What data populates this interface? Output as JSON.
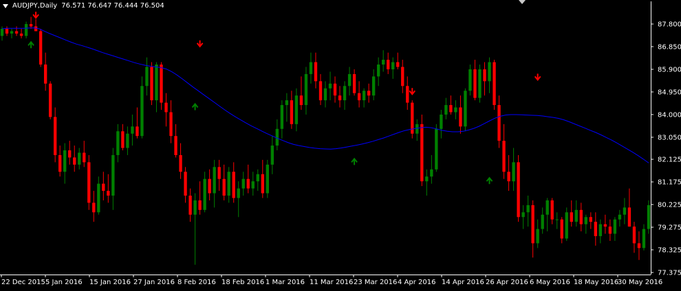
{
  "header": {
    "symbol": "AUDJPY,Daily",
    "ohlc": "76.571 76.647 76.444 76.504"
  },
  "chart_data": {
    "type": "candlestick",
    "symbol": "AUDJPY",
    "timeframe": "Daily",
    "ylim": [
      77.375,
      88.2
    ],
    "y_ticks": [
      "87.800",
      "86.850",
      "85.900",
      "84.950",
      "84.000",
      "83.050",
      "82.125",
      "81.175",
      "80.225",
      "79.275",
      "78.325",
      "77.375"
    ],
    "x_ticks": [
      "22 Dec 2015",
      "5 Jan 2016",
      "15 Jan 2016",
      "27 Jan 2016",
      "8 Feb 2016",
      "18 Feb 2016",
      "1 Mar 2016",
      "11 Mar 2016",
      "23 Mar 2016",
      "4 Apr 2016",
      "14 Apr 2016",
      "26 Apr 2016",
      "6 May 2016",
      "18 May 2016",
      "30 May 2016"
    ],
    "colors": {
      "bull": "#008000",
      "bear": "#ff0000",
      "ma": "#0000ff",
      "background": "#000000",
      "axis": "#ffffff"
    },
    "candles": [
      [
        87.3,
        87.7,
        87.1,
        87.6
      ],
      [
        87.6,
        87.7,
        87.3,
        87.4
      ],
      [
        87.4,
        87.6,
        87.2,
        87.5
      ],
      [
        87.5,
        87.7,
        87.3,
        87.4
      ],
      [
        87.4,
        87.6,
        87.2,
        87.3
      ],
      [
        87.3,
        87.9,
        87.2,
        87.8
      ],
      [
        87.8,
        88.1,
        87.6,
        87.7
      ],
      [
        87.7,
        88.0,
        87.5,
        87.5
      ],
      [
        87.5,
        87.6,
        86.0,
        86.1
      ],
      [
        86.1,
        86.6,
        85.0,
        85.3
      ],
      [
        85.3,
        85.4,
        83.8,
        83.9
      ],
      [
        83.9,
        84.3,
        82.0,
        82.3
      ],
      [
        82.3,
        82.7,
        81.4,
        81.6
      ],
      [
        81.6,
        82.8,
        81.1,
        82.5
      ],
      [
        82.5,
        82.9,
        81.9,
        82.2
      ],
      [
        82.2,
        82.7,
        81.6,
        81.9
      ],
      [
        81.9,
        82.6,
        81.7,
        82.4
      ],
      [
        82.4,
        82.9,
        81.8,
        82.0
      ],
      [
        82.0,
        82.3,
        80.0,
        80.3
      ],
      [
        80.3,
        80.8,
        79.5,
        79.9
      ],
      [
        79.9,
        81.4,
        79.8,
        81.1
      ],
      [
        81.1,
        81.6,
        80.4,
        80.8
      ],
      [
        80.8,
        81.5,
        80.3,
        80.6
      ],
      [
        80.6,
        82.6,
        80.0,
        82.3
      ],
      [
        82.3,
        83.6,
        82.0,
        83.3
      ],
      [
        83.3,
        83.6,
        82.5,
        82.6
      ],
      [
        82.6,
        83.5,
        82.3,
        83.2
      ],
      [
        83.2,
        84.0,
        82.7,
        83.5
      ],
      [
        83.5,
        84.3,
        83.0,
        83.1
      ],
      [
        83.1,
        85.6,
        83.0,
        85.2
      ],
      [
        85.2,
        86.4,
        84.8,
        86.0
      ],
      [
        86.0,
        86.2,
        84.4,
        84.6
      ],
      [
        84.6,
        86.2,
        84.1,
        86.1
      ],
      [
        86.1,
        86.2,
        84.2,
        84.5
      ],
      [
        84.5,
        84.9,
        83.5,
        84.1
      ],
      [
        84.1,
        84.6,
        82.8,
        83.1
      ],
      [
        83.1,
        83.6,
        82.2,
        82.3
      ],
      [
        82.3,
        82.8,
        81.3,
        81.6
      ],
      [
        81.6,
        81.8,
        80.3,
        80.6
      ],
      [
        80.6,
        80.9,
        79.5,
        79.8
      ],
      [
        79.8,
        80.7,
        77.7,
        80.4
      ],
      [
        80.4,
        81.2,
        79.8,
        80.0
      ],
      [
        80.0,
        81.6,
        79.9,
        81.3
      ],
      [
        81.3,
        81.7,
        80.4,
        80.7
      ],
      [
        80.7,
        82.1,
        80.1,
        81.8
      ],
      [
        81.8,
        82.1,
        80.8,
        81.3
      ],
      [
        81.3,
        81.9,
        80.4,
        80.6
      ],
      [
        80.6,
        81.8,
        80.3,
        81.6
      ],
      [
        81.6,
        82.0,
        80.3,
        80.5
      ],
      [
        80.5,
        81.2,
        79.7,
        80.9
      ],
      [
        80.9,
        81.6,
        80.6,
        81.3
      ],
      [
        81.3,
        81.9,
        80.7,
        80.9
      ],
      [
        80.9,
        81.6,
        80.6,
        81.2
      ],
      [
        81.2,
        81.7,
        80.8,
        81.5
      ],
      [
        81.5,
        82.1,
        80.5,
        80.7
      ],
      [
        80.7,
        82.1,
        80.5,
        81.9
      ],
      [
        81.9,
        83.1,
        81.5,
        82.7
      ],
      [
        82.7,
        83.8,
        82.5,
        83.4
      ],
      [
        83.4,
        84.6,
        83.0,
        84.4
      ],
      [
        84.4,
        84.9,
        83.7,
        84.6
      ],
      [
        84.6,
        85.0,
        83.4,
        83.6
      ],
      [
        83.6,
        85.1,
        83.3,
        84.8
      ],
      [
        84.8,
        85.6,
        84.2,
        84.4
      ],
      [
        84.4,
        86.0,
        84.0,
        85.7
      ],
      [
        85.7,
        86.6,
        85.3,
        86.2
      ],
      [
        86.2,
        86.6,
        85.1,
        85.4
      ],
      [
        85.4,
        85.7,
        84.4,
        84.6
      ],
      [
        84.6,
        85.4,
        84.3,
        85.1
      ],
      [
        85.1,
        85.8,
        84.6,
        85.3
      ],
      [
        85.3,
        85.6,
        84.5,
        84.8
      ],
      [
        84.8,
        85.2,
        84.3,
        84.6
      ],
      [
        84.6,
        85.4,
        84.2,
        85.2
      ],
      [
        85.2,
        86.0,
        84.8,
        85.7
      ],
      [
        85.7,
        85.9,
        84.8,
        84.9
      ],
      [
        84.9,
        85.4,
        84.3,
        84.6
      ],
      [
        84.6,
        85.1,
        84.3,
        85.0
      ],
      [
        85.0,
        85.3,
        84.5,
        84.8
      ],
      [
        84.8,
        85.9,
        84.6,
        85.6
      ],
      [
        85.6,
        86.4,
        85.2,
        86.1
      ],
      [
        86.1,
        86.7,
        85.8,
        86.3
      ],
      [
        86.3,
        86.6,
        85.7,
        85.9
      ],
      [
        85.9,
        86.4,
        85.5,
        86.2
      ],
      [
        86.2,
        86.6,
        85.9,
        86.0
      ],
      [
        86.0,
        86.3,
        84.9,
        85.2
      ],
      [
        85.2,
        85.6,
        84.2,
        84.5
      ],
      [
        84.5,
        84.6,
        83.0,
        83.2
      ],
      [
        83.2,
        83.8,
        82.9,
        83.6
      ],
      [
        83.6,
        84.0,
        81.0,
        81.2
      ],
      [
        81.2,
        81.7,
        80.6,
        81.4
      ],
      [
        81.4,
        82.3,
        81.1,
        81.7
      ],
      [
        81.7,
        83.6,
        81.6,
        83.4
      ],
      [
        83.4,
        84.2,
        83.0,
        84.0
      ],
      [
        84.0,
        84.7,
        83.8,
        84.4
      ],
      [
        84.4,
        84.8,
        84.0,
        84.1
      ],
      [
        84.1,
        84.6,
        83.8,
        84.3
      ],
      [
        84.3,
        84.8,
        83.2,
        83.5
      ],
      [
        83.5,
        85.1,
        83.3,
        85.0
      ],
      [
        85.0,
        86.1,
        84.8,
        85.9
      ],
      [
        85.9,
        86.3,
        84.6,
        84.7
      ],
      [
        84.7,
        86.1,
        84.5,
        85.9
      ],
      [
        85.9,
        86.2,
        84.8,
        85.4
      ],
      [
        85.4,
        86.4,
        84.9,
        86.2
      ],
      [
        86.2,
        86.3,
        84.2,
        84.4
      ],
      [
        84.4,
        84.8,
        82.6,
        82.9
      ],
      [
        82.9,
        83.6,
        81.3,
        81.6
      ],
      [
        81.6,
        82.3,
        80.8,
        81.2
      ],
      [
        81.2,
        82.6,
        80.8,
        82.0
      ],
      [
        82.0,
        82.3,
        79.5,
        79.7
      ],
      [
        79.7,
        80.2,
        79.2,
        79.9
      ],
      [
        79.9,
        80.6,
        79.3,
        80.2
      ],
      [
        80.2,
        80.4,
        78.0,
        78.6
      ],
      [
        78.6,
        79.6,
        78.4,
        79.2
      ],
      [
        79.2,
        80.1,
        79.0,
        79.8
      ],
      [
        79.8,
        80.5,
        79.1,
        80.4
      ],
      [
        80.4,
        80.5,
        79.4,
        79.6
      ],
      [
        79.6,
        79.9,
        79.2,
        79.6
      ],
      [
        79.6,
        79.7,
        78.6,
        78.8
      ],
      [
        78.8,
        80.1,
        78.7,
        79.9
      ],
      [
        79.9,
        80.4,
        79.3,
        79.5
      ],
      [
        79.5,
        80.4,
        79.3,
        80.0
      ],
      [
        80.0,
        80.3,
        79.1,
        79.4
      ],
      [
        79.4,
        79.8,
        79.0,
        79.7
      ],
      [
        79.7,
        79.9,
        79.2,
        79.5
      ],
      [
        79.5,
        79.9,
        78.5,
        78.9
      ],
      [
        78.9,
        79.6,
        78.6,
        79.4
      ],
      [
        79.4,
        79.8,
        79.0,
        79.3
      ],
      [
        79.3,
        79.6,
        78.7,
        79.0
      ],
      [
        79.0,
        79.7,
        78.7,
        79.6
      ],
      [
        79.6,
        80.0,
        79.3,
        79.8
      ],
      [
        79.8,
        80.5,
        79.4,
        80.1
      ],
      [
        80.1,
        80.9,
        79.3,
        79.3
      ],
      [
        79.3,
        79.5,
        78.2,
        78.6
      ],
      [
        78.6,
        79.1,
        77.9,
        78.4
      ],
      [
        78.4,
        79.4,
        78.3,
        79.2
      ],
      [
        79.2,
        80.4,
        79.0,
        80.2
      ]
    ],
    "moving_average": [
      87.6,
      87.62,
      87.62,
      87.62,
      87.62,
      87.63,
      87.64,
      87.6,
      87.5,
      87.4,
      87.31,
      87.22,
      87.13,
      87.04,
      86.96,
      86.9,
      86.83,
      86.76,
      86.68,
      86.6,
      86.53,
      86.46,
      86.39,
      86.32,
      86.25,
      86.18,
      86.12,
      86.07,
      86.03,
      86.0,
      85.97,
      85.91,
      85.8,
      85.66,
      85.5,
      85.33,
      85.16,
      85.0,
      84.84,
      84.68,
      84.52,
      84.36,
      84.2,
      84.05,
      83.91,
      83.78,
      83.65,
      83.53,
      83.42,
      83.31,
      83.2,
      83.1,
      83.0,
      82.91,
      82.82,
      82.75,
      82.7,
      82.66,
      82.62,
      82.59,
      82.57,
      82.56,
      82.55,
      82.57,
      82.6,
      82.64,
      82.68,
      82.72,
      82.77,
      82.82,
      82.88,
      82.95,
      83.02,
      83.1,
      83.18,
      83.26,
      83.33,
      83.38,
      83.42,
      83.45,
      83.47,
      83.45,
      83.4,
      83.34,
      83.3,
      83.28,
      83.28,
      83.3,
      83.35,
      83.42,
      83.51,
      83.62,
      83.74,
      83.85,
      83.93,
      83.98,
      84.0,
      84.0,
      83.99,
      83.98,
      83.97,
      83.96,
      83.94,
      83.91,
      83.88,
      83.84,
      83.78,
      83.7,
      83.61,
      83.52,
      83.43,
      83.34,
      83.25,
      83.15,
      83.04,
      82.93,
      82.81,
      82.68,
      82.55,
      82.42,
      82.28,
      82.13,
      81.97
    ],
    "moving_average_start_index": 0,
    "signals_up": [
      {
        "i": 6,
        "price": 86.9
      },
      {
        "i": 40,
        "price": 84.3
      },
      {
        "i": 73,
        "price": 82.0
      },
      {
        "i": 101,
        "price": 81.2
      }
    ],
    "signals_down": [
      {
        "i": 7,
        "price": 88.2
      },
      {
        "i": 41,
        "price": 87.0
      },
      {
        "i": 85,
        "price": 85.0
      },
      {
        "i": 111,
        "price": 85.6
      }
    ]
  }
}
